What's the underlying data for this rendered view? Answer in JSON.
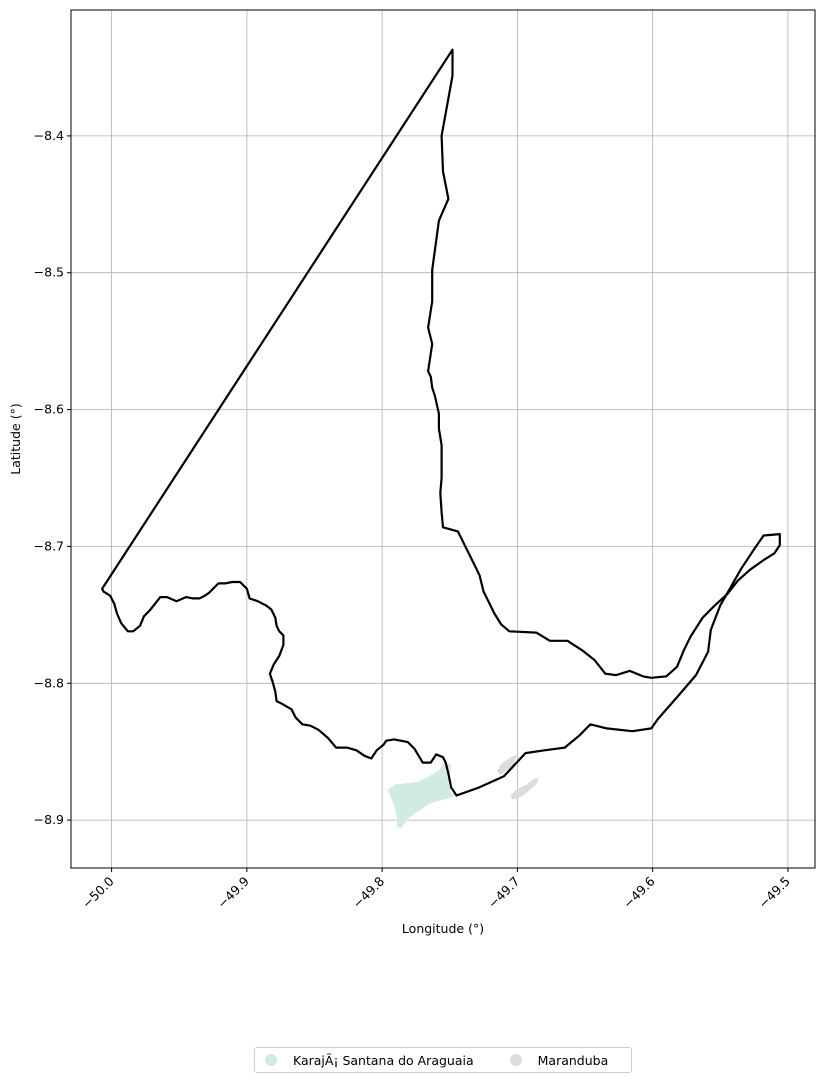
{
  "chart_data": {
    "type": "map",
    "xlabel": "Longitude (°)",
    "ylabel": "Latitude (°)",
    "xlim": [
      -50.03,
      -49.48
    ],
    "ylim": [
      -8.935,
      -8.308
    ],
    "x_ticks": [
      -50.0,
      -49.9,
      -49.8,
      -49.7,
      -49.6,
      -49.5
    ],
    "x_tick_labels": [
      "−50.0",
      "−49.9",
      "−49.8",
      "−49.7",
      "−49.6",
      "−49.5"
    ],
    "y_ticks": [
      -8.4,
      -8.5,
      -8.6,
      -8.7,
      -8.8,
      -8.9
    ],
    "y_tick_labels": [
      "−8.4",
      "−8.5",
      "−8.6",
      "−8.7",
      "−8.8",
      "−8.9"
    ],
    "grid": true,
    "legend_position": "bottom-center",
    "series": [
      {
        "name": "KarajÃ¡ Santana do Araguaia",
        "color": "#d2ebe0",
        "polygons": [
          [
            [
              -49.79,
              -8.874
            ],
            [
              -49.773,
              -8.872
            ],
            [
              -49.758,
              -8.864
            ],
            [
              -49.755,
              -8.858
            ],
            [
              -49.749,
              -8.859
            ],
            [
              -49.75,
              -8.866
            ],
            [
              -49.751,
              -8.873
            ],
            [
              -49.749,
              -8.88
            ],
            [
              -49.745,
              -8.882
            ],
            [
              -49.765,
              -8.888
            ],
            [
              -49.774,
              -8.894
            ],
            [
              -49.781,
              -8.899
            ],
            [
              -49.786,
              -8.906
            ],
            [
              -49.789,
              -8.905
            ],
            [
              -49.789,
              -8.899
            ],
            [
              -49.791,
              -8.889
            ],
            [
              -49.796,
              -8.878
            ]
          ]
        ]
      },
      {
        "name": "Maranduba",
        "color": "#dcdcdc",
        "polygons": [
          [
            [
              -49.711,
              -8.866
            ],
            [
              -49.703,
              -8.86
            ],
            [
              -49.7,
              -8.852
            ],
            [
              -49.705,
              -8.854
            ],
            [
              -49.712,
              -8.859
            ],
            [
              -49.715,
              -8.864
            ],
            [
              -49.713,
              -8.867
            ]
          ],
          [
            [
              -49.705,
              -8.882
            ],
            [
              -49.7,
              -8.877
            ],
            [
              -49.693,
              -8.874
            ],
            [
              -49.688,
              -8.87
            ],
            [
              -49.684,
              -8.869
            ],
            [
              -49.686,
              -8.874
            ],
            [
              -49.692,
              -8.879
            ],
            [
              -49.697,
              -8.883
            ],
            [
              -49.704,
              -8.885
            ]
          ]
        ]
      }
    ],
    "boundary": [
      [
        -50.007,
        -8.731
      ],
      [
        -49.748,
        -8.337
      ],
      [
        -49.748,
        -8.356
      ],
      [
        -49.756,
        -8.4
      ],
      [
        -49.755,
        -8.426
      ],
      [
        -49.751,
        -8.446
      ],
      [
        -49.758,
        -8.462
      ],
      [
        -49.763,
        -8.498
      ],
      [
        -49.763,
        -8.521
      ],
      [
        -49.766,
        -8.54
      ],
      [
        -49.763,
        -8.552
      ],
      [
        -49.766,
        -8.572
      ],
      [
        -49.764,
        -8.576
      ],
      [
        -49.763,
        -8.584
      ],
      [
        -49.761,
        -8.59
      ],
      [
        -49.758,
        -8.603
      ],
      [
        -49.758,
        -8.614
      ],
      [
        -49.756,
        -8.626
      ],
      [
        -49.756,
        -8.65
      ],
      [
        -49.757,
        -8.661
      ],
      [
        -49.756,
        -8.675
      ],
      [
        -49.755,
        -8.686
      ],
      [
        -49.744,
        -8.689
      ],
      [
        -49.738,
        -8.701
      ],
      [
        -49.733,
        -8.711
      ],
      [
        -49.728,
        -8.721
      ],
      [
        -49.725,
        -8.733
      ],
      [
        -49.721,
        -8.741
      ],
      [
        -49.717,
        -8.749
      ],
      [
        -49.712,
        -8.757
      ],
      [
        -49.706,
        -8.762
      ],
      [
        -49.686,
        -8.763
      ],
      [
        -49.676,
        -8.769
      ],
      [
        -49.663,
        -8.769
      ],
      [
        -49.652,
        -8.776
      ],
      [
        -49.643,
        -8.783
      ],
      [
        -49.635,
        -8.793
      ],
      [
        -49.627,
        -8.794
      ],
      [
        -49.617,
        -8.791
      ],
      [
        -49.607,
        -8.795
      ],
      [
        -49.601,
        -8.796
      ],
      [
        -49.59,
        -8.795
      ],
      [
        -49.582,
        -8.788
      ],
      [
        -49.577,
        -8.776
      ],
      [
        -49.572,
        -8.766
      ],
      [
        -49.563,
        -8.752
      ],
      [
        -49.554,
        -8.743
      ],
      [
        -49.545,
        -8.735
      ],
      [
        -49.537,
        -8.725
      ],
      [
        -49.528,
        -8.717
      ],
      [
        -49.518,
        -8.71
      ],
      [
        -49.51,
        -8.705
      ],
      [
        -49.506,
        -8.699
      ],
      [
        -49.506,
        -8.691
      ],
      [
        -49.518,
        -8.692
      ],
      [
        -49.525,
        -8.702
      ],
      [
        -49.535,
        -8.717
      ],
      [
        -49.543,
        -8.731
      ],
      [
        -49.55,
        -8.743
      ],
      [
        -49.557,
        -8.761
      ],
      [
        -49.559,
        -8.777
      ],
      [
        -49.568,
        -8.794
      ],
      [
        -49.581,
        -8.809
      ],
      [
        -49.596,
        -8.826
      ],
      [
        -49.601,
        -8.833
      ],
      [
        -49.615,
        -8.835
      ],
      [
        -49.634,
        -8.833
      ],
      [
        -49.646,
        -8.83
      ],
      [
        -49.654,
        -8.838
      ],
      [
        -49.665,
        -8.847
      ],
      [
        -49.68,
        -8.849
      ],
      [
        -49.694,
        -8.851
      ],
      [
        -49.71,
        -8.868
      ],
      [
        -49.728,
        -8.876
      ],
      [
        -49.745,
        -8.882
      ],
      [
        -49.749,
        -8.876
      ],
      [
        -49.751,
        -8.866
      ],
      [
        -49.753,
        -8.858
      ],
      [
        -49.755,
        -8.854
      ],
      [
        -49.76,
        -8.852
      ],
      [
        -49.764,
        -8.858
      ],
      [
        -49.77,
        -8.858
      ],
      [
        -49.776,
        -8.848
      ],
      [
        -49.781,
        -8.843
      ],
      [
        -49.791,
        -8.841
      ],
      [
        -49.797,
        -8.842
      ],
      [
        -49.799,
        -8.845
      ],
      [
        -49.804,
        -8.849
      ],
      [
        -49.808,
        -8.855
      ],
      [
        -49.813,
        -8.853
      ],
      [
        -49.819,
        -8.849
      ],
      [
        -49.826,
        -8.847
      ],
      [
        -49.834,
        -8.847
      ],
      [
        -49.84,
        -8.84
      ],
      [
        -49.847,
        -8.834
      ],
      [
        -49.853,
        -8.831
      ],
      [
        -49.859,
        -8.83
      ],
      [
        -49.864,
        -8.825
      ],
      [
        -49.867,
        -8.819
      ],
      [
        -49.874,
        -8.815
      ],
      [
        -49.878,
        -8.813
      ],
      [
        -49.879,
        -8.806
      ],
      [
        -49.881,
        -8.799
      ],
      [
        -49.883,
        -8.793
      ],
      [
        -49.88,
        -8.786
      ],
      [
        -49.876,
        -8.78
      ],
      [
        -49.873,
        -8.772
      ],
      [
        -49.873,
        -8.765
      ],
      [
        -49.876,
        -8.762
      ],
      [
        -49.878,
        -8.758
      ],
      [
        -49.879,
        -8.752
      ],
      [
        -49.882,
        -8.746
      ],
      [
        -49.886,
        -8.743
      ],
      [
        -49.892,
        -8.74
      ],
      [
        -49.898,
        -8.738
      ],
      [
        -49.9,
        -8.731
      ],
      [
        -49.905,
        -8.726
      ],
      [
        -49.911,
        -8.726
      ],
      [
        -49.916,
        -8.727
      ],
      [
        -49.921,
        -8.727
      ],
      [
        -49.925,
        -8.731
      ],
      [
        -49.928,
        -8.734
      ],
      [
        -49.931,
        -8.736
      ],
      [
        -49.935,
        -8.738
      ],
      [
        -49.94,
        -8.738
      ],
      [
        -49.945,
        -8.737
      ],
      [
        -49.952,
        -8.74
      ],
      [
        -49.959,
        -8.737
      ],
      [
        -49.964,
        -8.737
      ],
      [
        -49.968,
        -8.742
      ],
      [
        -49.972,
        -8.747
      ],
      [
        -49.976,
        -8.751
      ],
      [
        -49.979,
        -8.758
      ],
      [
        -49.984,
        -8.762
      ],
      [
        -49.988,
        -8.762
      ],
      [
        -49.993,
        -8.756
      ],
      [
        -49.996,
        -8.749
      ],
      [
        -49.998,
        -8.742
      ],
      [
        -50.001,
        -8.736
      ],
      [
        -50.006,
        -8.733
      ]
    ]
  },
  "legend": {
    "items": [
      {
        "label": "KarajÃ¡ Santana do Araguaia",
        "color": "#d2ebe0"
      },
      {
        "label": "Maranduba",
        "color": "#dcdcdc"
      }
    ]
  }
}
